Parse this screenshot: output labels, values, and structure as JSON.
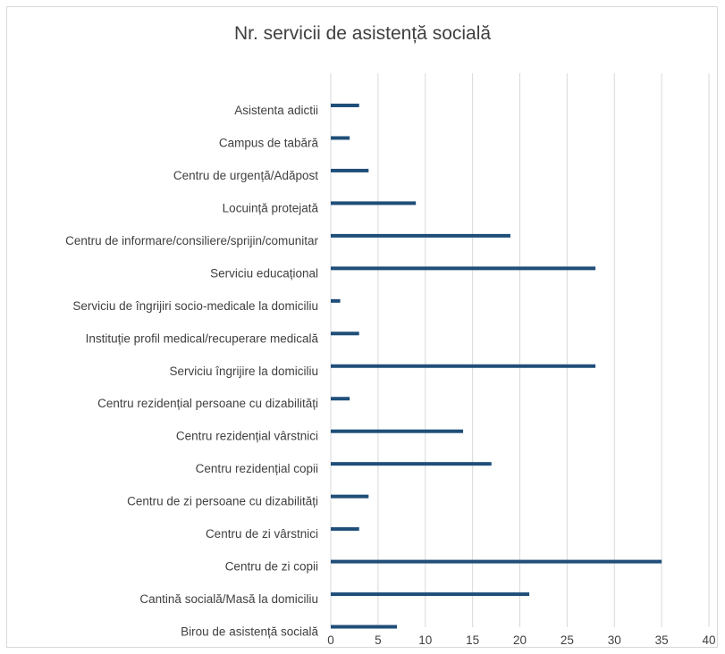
{
  "chart_data": {
    "type": "bar",
    "orientation": "horizontal",
    "title": "Nr. servicii de asistență socială",
    "xlabel": "",
    "ylabel": "",
    "xlim": [
      0,
      40
    ],
    "xticks": [
      0,
      5,
      10,
      15,
      20,
      25,
      30,
      35,
      40
    ],
    "grid": "vertical",
    "legend": "none",
    "bar_color": "#1f4e79",
    "categories": [
      "Asistenta adictii",
      "Campus de tabără",
      "Centru de urgență/Adăpost",
      "Locuință protejată",
      "Centru de informare/consiliere/sprijin/comunitar",
      "Serviciu educațional",
      "Serviciu de îngrijiri socio-medicale la domiciliu",
      "Instituție profil medical/recuperare medicală",
      "Serviciu îngrijire la domiciliu",
      "Centru rezidențial persoane cu dizabilități",
      "Centru rezidențial vârstnici",
      "Centru rezidențial copii",
      "Centru de zi persoane cu dizabilități",
      "Centru de zi vârstnici",
      "Centru de zi copii",
      "Cantină socială/Masă la domiciliu",
      "Birou de asistență socială"
    ],
    "values": [
      3,
      2,
      4,
      9,
      19,
      28,
      1,
      3,
      28,
      2,
      14,
      17,
      4,
      3,
      35,
      21,
      7
    ]
  }
}
